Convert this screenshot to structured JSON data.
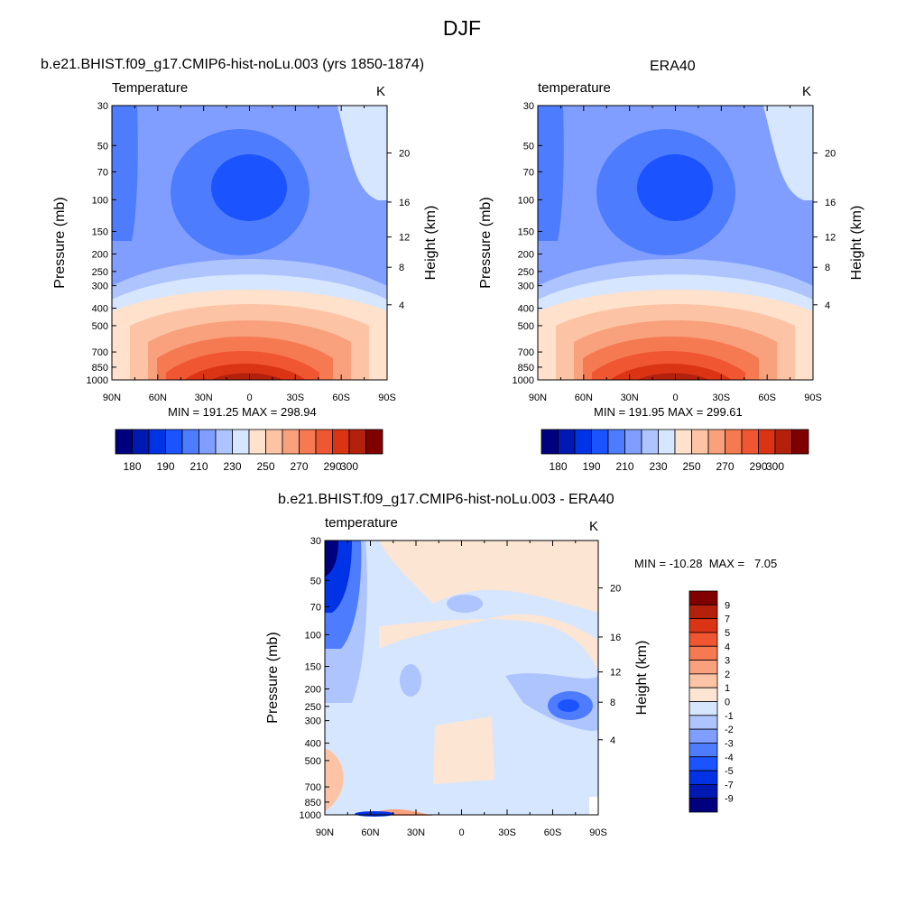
{
  "main_title": "DJF",
  "colors": {
    "abs_levels": [
      "#00007f",
      "#0019b3",
      "#0033e6",
      "#1a53ff",
      "#4d7cff",
      "#809eff",
      "#aec4ff",
      "#d6e6ff",
      "#ffe1cc",
      "#fcc4a4",
      "#f9a07c",
      "#f57a52",
      "#ef5631",
      "#db3415",
      "#b3200c",
      "#800000"
    ],
    "diff_levels": [
      "#00007f",
      "#0019b3",
      "#0033e6",
      "#1a53ff",
      "#4d7cff",
      "#809eff",
      "#aec4ff",
      "#d6e6ff",
      "#fde5d3",
      "#fcc4a4",
      "#f9a07c",
      "#f57a52",
      "#ef5631",
      "#db3415",
      "#b3200c",
      "#800000"
    ]
  },
  "chart_data": [
    {
      "type": "contour",
      "title": "b.e21.BHIST.f09_g17.CMIP6-hist-noLu.003 (yrs 1850-1874)",
      "left_string": "Temperature",
      "right_string": "K",
      "ylabel": "Pressure (mb)",
      "ylabel_right": "Height (km)",
      "yticks": [
        "30",
        "50",
        "70",
        "100",
        "150",
        "200",
        "250",
        "300",
        "400",
        "500",
        "700",
        "850",
        "1000"
      ],
      "yticks_right": [
        "20",
        "16",
        "12",
        "8",
        "4"
      ],
      "xticks": [
        "90N",
        "60N",
        "30N",
        "0",
        "30S",
        "60S",
        "90S"
      ],
      "min_max": "MIN = 191.25  MAX = 298.94",
      "colorbar_labels": [
        "180",
        "190",
        "210",
        "230",
        "250",
        "270",
        "290",
        "300"
      ]
    },
    {
      "type": "contour",
      "title": "ERA40",
      "left_string": "temperature",
      "right_string": "K",
      "ylabel": "Pressure (mb)",
      "ylabel_right": "Height (km)",
      "yticks": [
        "30",
        "50",
        "70",
        "100",
        "150",
        "200",
        "250",
        "300",
        "400",
        "500",
        "700",
        "850",
        "1000"
      ],
      "yticks_right": [
        "20",
        "16",
        "12",
        "8",
        "4"
      ],
      "xticks": [
        "90N",
        "60N",
        "30N",
        "0",
        "30S",
        "60S",
        "90S"
      ],
      "min_max": "MIN = 191.95  MAX = 299.61",
      "colorbar_labels": [
        "180",
        "190",
        "210",
        "230",
        "250",
        "270",
        "290",
        "300"
      ]
    },
    {
      "type": "contour",
      "title": "b.e21.BHIST.f09_g17.CMIP6-hist-noLu.003 - ERA40",
      "left_string": "temperature",
      "right_string": "K",
      "ylabel": "Pressure (mb)",
      "ylabel_right": "Height (km)",
      "yticks": [
        "30",
        "50",
        "70",
        "100",
        "150",
        "200",
        "250",
        "300",
        "400",
        "500",
        "700",
        "850",
        "1000"
      ],
      "yticks_right": [
        "20",
        "16",
        "12",
        "8",
        "4"
      ],
      "xticks": [
        "90N",
        "60N",
        "30N",
        "0",
        "30S",
        "60S",
        "90S"
      ],
      "min_max": "MIN = -10.28  MAX =   7.05",
      "colorbar_labels": [
        "9",
        "7",
        "5",
        "4",
        "3",
        "2",
        "1",
        "0",
        "-1",
        "-2",
        "-3",
        "-4",
        "-5",
        "-7",
        "-9"
      ]
    }
  ]
}
